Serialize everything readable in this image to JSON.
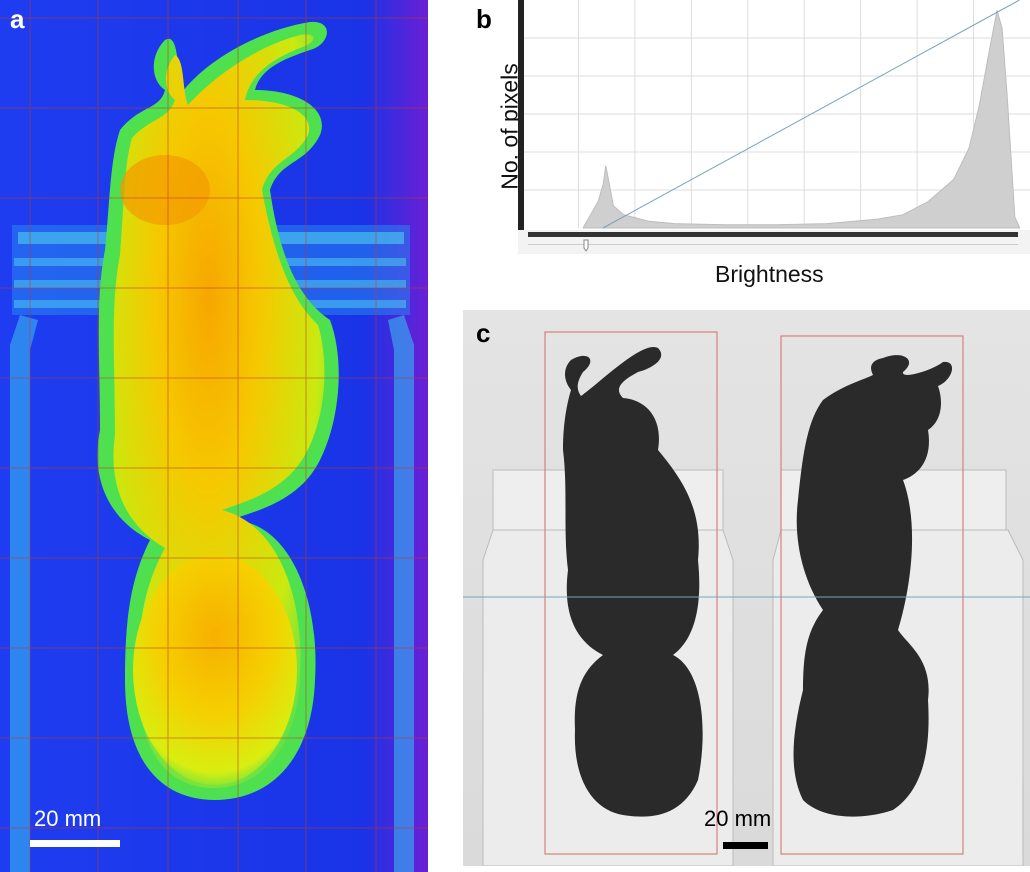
{
  "panel_a": {
    "label": "a",
    "scale_bar_text": "20 mm"
  },
  "panel_b": {
    "label": "b",
    "y_axis_label": "No. of pixels",
    "x_axis_label": "Brightness"
  },
  "panel_c": {
    "label": "c",
    "scale_bar_text": "20 mm"
  },
  "colors": {
    "heatmap_background": "#1a2ee8",
    "heatmap_edge": "#6a1fd6",
    "heatmap_body": "#f5c800",
    "heatmap_outline": "#2de05a",
    "grid_red": "#c0392b",
    "histogram_fill": "#cfcfcf",
    "histogram_line": "#7aa3b8",
    "xray_background": "#e2e2e2",
    "xray_body": "#2a2a2a",
    "roi_box": "#d98080"
  },
  "chart_data": {
    "type": "area",
    "title": "",
    "xlabel": "Brightness",
    "ylabel": "No. of pixels",
    "x": [
      0.12,
      0.15,
      0.16,
      0.165,
      0.17,
      0.18,
      0.2,
      0.25,
      0.3,
      0.4,
      0.5,
      0.6,
      0.7,
      0.75,
      0.8,
      0.85,
      0.88,
      0.9,
      0.92,
      0.935,
      0.945,
      0.955,
      0.97,
      0.98
    ],
    "y": [
      0.0,
      0.12,
      0.2,
      0.28,
      0.22,
      0.1,
      0.06,
      0.03,
      0.02,
      0.015,
      0.015,
      0.02,
      0.04,
      0.06,
      0.12,
      0.22,
      0.36,
      0.55,
      0.8,
      0.98,
      0.9,
      0.6,
      0.05,
      0.0
    ],
    "grid": true
  }
}
